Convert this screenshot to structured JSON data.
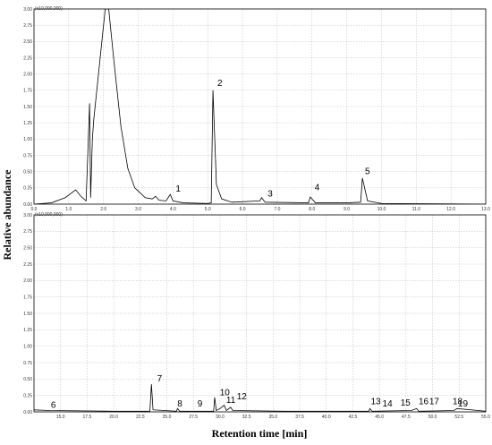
{
  "figure": {
    "ylabel": "Relative abundance",
    "xlabel": "Retention time [min]"
  },
  "chart_data": [
    {
      "type": "line",
      "annotation": "(x10,000,000)",
      "color": "#000000",
      "grid": true,
      "xlim": [
        0,
        13.0
      ],
      "ylim": [
        0,
        3.0
      ],
      "xticks": [
        {
          "value": 0,
          "label": "0.0"
        },
        {
          "value": 1,
          "label": "1.0"
        },
        {
          "value": 2,
          "label": "2.0"
        },
        {
          "value": 3,
          "label": "3.0"
        },
        {
          "value": 4,
          "label": "4.0"
        },
        {
          "value": 5,
          "label": "5.0"
        },
        {
          "value": 6,
          "label": "6.0"
        },
        {
          "value": 7,
          "label": "7.0"
        },
        {
          "value": 8,
          "label": "8.0"
        },
        {
          "value": 9,
          "label": "9.0"
        },
        {
          "value": 10,
          "label": "10.0"
        },
        {
          "value": 11,
          "label": "11.0"
        },
        {
          "value": 12,
          "label": "12.0"
        },
        {
          "value": 13,
          "label": "13.0"
        }
      ],
      "yticks": [
        {
          "value": 0,
          "label": "0.00"
        },
        0.25,
        {
          "value": 0.5,
          "label": "0.50"
        },
        0.75,
        {
          "value": 1,
          "label": "1.00"
        },
        1.25,
        {
          "value": 1.5,
          "label": "1.50"
        },
        1.75,
        {
          "value": 2,
          "label": "2.00"
        },
        2.25,
        {
          "value": 2.5,
          "label": "2.50"
        },
        2.75,
        {
          "value": 3,
          "label": "3.00"
        }
      ],
      "x": [
        0,
        0.5,
        0.9,
        1.2,
        1.35,
        1.5,
        1.6,
        1.63,
        1.68,
        1.72,
        2.05,
        2.15,
        2.3,
        2.5,
        2.7,
        2.9,
        3.0,
        3.2,
        3.4,
        3.5,
        3.6,
        3.8,
        3.92,
        4.0,
        4.3,
        5.0,
        5.1,
        5.15,
        5.25,
        5.4,
        5.7,
        6.5,
        6.55,
        6.65,
        7.9,
        7.95,
        8.1,
        9.0,
        9.4,
        9.45,
        9.6,
        10.0,
        13.0
      ],
      "values": [
        0,
        0.02,
        0.1,
        0.22,
        0.12,
        0.05,
        1.55,
        0.1,
        1.0,
        1.3,
        3.0,
        3.0,
        2.2,
        1.2,
        0.55,
        0.25,
        0.2,
        0.1,
        0.08,
        0.12,
        0.06,
        0.05,
        0.15,
        0.05,
        0.02,
        0.01,
        0.02,
        1.75,
        0.3,
        0.08,
        0.03,
        0.05,
        0.1,
        0.03,
        0.02,
        0.11,
        0.02,
        0.02,
        0.03,
        0.4,
        0.05,
        0.01,
        0
      ],
      "peak_labels": [
        {
          "text": "1",
          "x": 4.05,
          "y": 0.18
        },
        {
          "text": "2",
          "x": 5.25,
          "y": 1.8
        },
        {
          "text": "3",
          "x": 6.7,
          "y": 0.1
        },
        {
          "text": "4",
          "x": 8.05,
          "y": 0.2
        },
        {
          "text": "5",
          "x": 9.5,
          "y": 0.45
        }
      ]
    },
    {
      "type": "line",
      "annotation": "(x10,000,000)",
      "color": "#000000",
      "grid": true,
      "xlim": [
        12.5,
        55.0
      ],
      "ylim": [
        0,
        3.0
      ],
      "xticks": [
        {
          "value": 15,
          "label": "15.0"
        },
        17.5,
        {
          "value": 20,
          "label": "20.0"
        },
        22.5,
        {
          "value": 25,
          "label": "25.0"
        },
        27.5,
        {
          "value": 30,
          "label": "30.0"
        },
        32.5,
        {
          "value": 35,
          "label": "35.0"
        },
        37.5,
        {
          "value": 40,
          "label": "40.0"
        },
        42.5,
        {
          "value": 45,
          "label": "45.0"
        },
        47.5,
        {
          "value": 50,
          "label": "50.0"
        },
        52.5,
        {
          "value": 55,
          "label": "55.0"
        }
      ],
      "yticks": [
        {
          "value": 0,
          "label": "0.00"
        },
        0.25,
        {
          "value": 0.5,
          "label": "0.50"
        },
        0.75,
        {
          "value": 1,
          "label": "1.00"
        },
        1.25,
        {
          "value": 1.5,
          "label": "1.50"
        },
        1.75,
        {
          "value": 2,
          "label": "2.00"
        },
        2.25,
        {
          "value": 2.5,
          "label": "2.50"
        },
        2.75,
        {
          "value": 3,
          "label": "3.00"
        }
      ],
      "x": [
        12.5,
        14,
        20,
        23.4,
        23.55,
        23.7,
        25.9,
        26,
        26.2,
        29.4,
        29.5,
        29.65,
        30,
        30.4,
        30.6,
        31,
        31.2,
        36,
        44,
        44.1,
        44.3,
        48,
        48.5,
        48.7,
        52,
        52.3,
        55
      ],
      "values": [
        0.03,
        0.02,
        0.01,
        0.01,
        0.42,
        0.03,
        0.01,
        0.05,
        0.01,
        0.01,
        0.22,
        0.02,
        0.05,
        0.1,
        0.02,
        0.07,
        0.02,
        0.01,
        0.01,
        0.05,
        0.01,
        0.02,
        0.05,
        0.01,
        0.02,
        0.05,
        0.01
      ],
      "peak_labels": [
        {
          "text": "6",
          "x": 14.0,
          "y": 0.05
        },
        {
          "text": "7",
          "x": 24.0,
          "y": 0.45
        },
        {
          "text": "8",
          "x": 25.9,
          "y": 0.07
        },
        {
          "text": "9",
          "x": 27.8,
          "y": 0.07
        },
        {
          "text": "10",
          "x": 29.9,
          "y": 0.24
        },
        {
          "text": "11",
          "x": 30.5,
          "y": 0.12
        },
        {
          "text": "12",
          "x": 31.5,
          "y": 0.18
        },
        {
          "text": "13",
          "x": 44.1,
          "y": 0.1
        },
        {
          "text": "14",
          "x": 45.2,
          "y": 0.07
        },
        {
          "text": "15",
          "x": 46.9,
          "y": 0.08
        },
        {
          "text": "16",
          "x": 48.6,
          "y": 0.1
        },
        {
          "text": "17",
          "x": 49.6,
          "y": 0.1
        },
        {
          "text": "18",
          "x": 51.8,
          "y": 0.1
        },
        {
          "text": "19",
          "x": 52.3,
          "y": 0.07
        }
      ]
    }
  ]
}
